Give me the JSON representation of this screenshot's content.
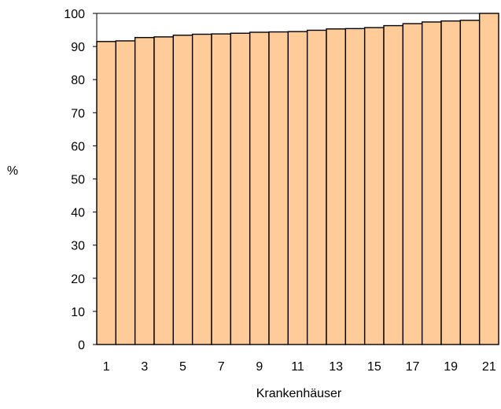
{
  "chart_data": {
    "type": "bar",
    "title": "",
    "xlabel": "Krankenhäuser",
    "ylabel": "%",
    "ylim": [
      0,
      100
    ],
    "yticks": [
      0,
      10,
      20,
      30,
      40,
      50,
      60,
      70,
      80,
      90,
      100
    ],
    "categories": [
      "1",
      "2",
      "3",
      "4",
      "5",
      "6",
      "7",
      "8",
      "9",
      "10",
      "11",
      "12",
      "13",
      "14",
      "15",
      "16",
      "17",
      "18",
      "19",
      "20",
      "21"
    ],
    "xtick_labels": [
      "1",
      "3",
      "5",
      "7",
      "9",
      "11",
      "13",
      "15",
      "17",
      "19",
      "21"
    ],
    "values": [
      91.5,
      91.7,
      92.7,
      92.9,
      93.4,
      93.7,
      93.8,
      94.0,
      94.3,
      94.4,
      94.5,
      94.9,
      95.3,
      95.4,
      95.7,
      96.3,
      96.9,
      97.4,
      97.7,
      97.9,
      100.0
    ],
    "grid": false,
    "legend": "none",
    "colors": {
      "bar_fill": "#FFCC99",
      "bar_stroke": "#000000",
      "axis": "#000000"
    }
  }
}
